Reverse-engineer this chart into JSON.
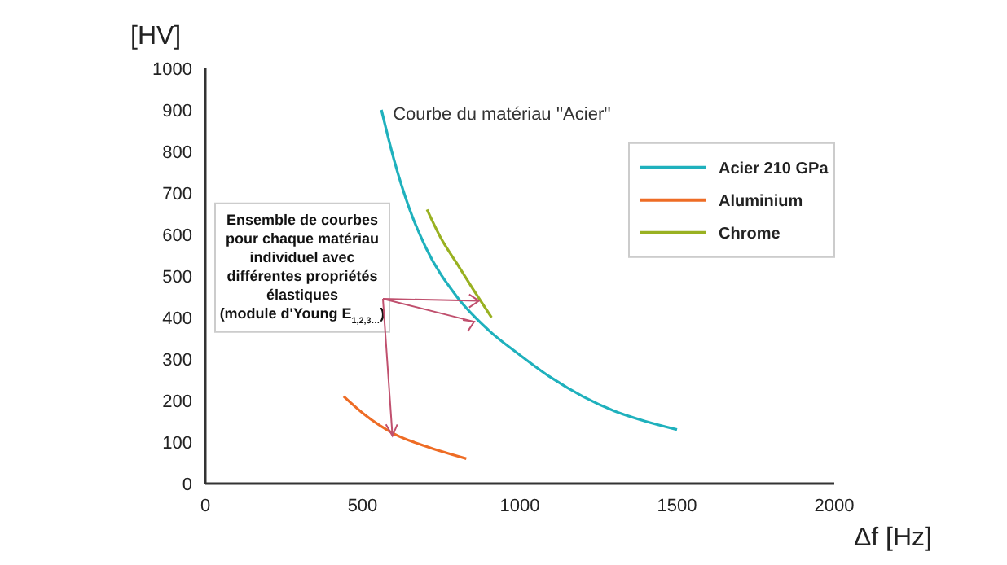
{
  "chart_data": {
    "type": "line",
    "xlabel": "Δf [Hz]",
    "ylabel": "[HV]",
    "xlim": [
      0,
      2000
    ],
    "ylim": [
      0,
      1000
    ],
    "xticks": [
      0,
      500,
      1000,
      1500,
      2000
    ],
    "yticks": [
      0,
      100,
      200,
      300,
      400,
      500,
      600,
      700,
      800,
      900,
      1000
    ],
    "grid": false,
    "legend": "top right",
    "marker": "none",
    "line_style": "solid",
    "series": [
      {
        "name": "Acier 210 GPa",
        "color": "#1fb1bd",
        "x": [
          560,
          600,
          650,
          700,
          800,
          900,
          1000,
          1100,
          1200,
          1300,
          1400,
          1500
        ],
        "values": [
          900,
          780,
          660,
          570,
          450,
          370,
          310,
          255,
          210,
          175,
          150,
          130
        ]
      },
      {
        "name": "Aluminium",
        "color": "#ee6c25",
        "x": [
          440,
          500,
          600,
          700,
          830
        ],
        "values": [
          210,
          170,
          120,
          90,
          60
        ]
      },
      {
        "name": "Chrome",
        "color": "#99b121",
        "x": [
          705,
          750,
          800,
          850,
          910
        ],
        "values": [
          660,
          590,
          530,
          470,
          400
        ]
      }
    ],
    "annotations": [
      {
        "text": "Courbe du matériau ''Acier''",
        "x": 560,
        "y": 900
      },
      {
        "text": "Ensemble de courbes\npour chaque matériau\nindividuel avec\ndifférentes propriétés\nélastiques\n(module d'Young E$_{1,2,3…}$)",
        "x": 855,
        "y": 390
      }
    ]
  }
}
